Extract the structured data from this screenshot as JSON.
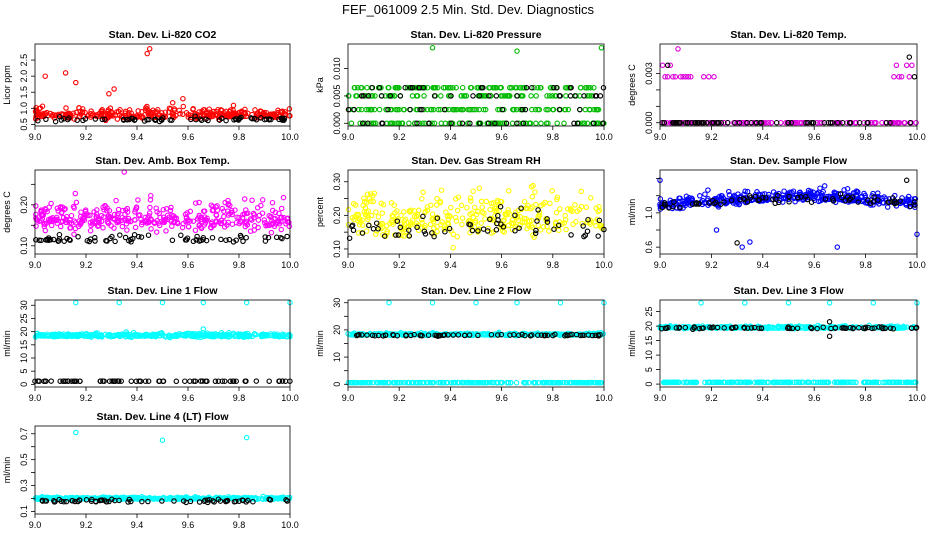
{
  "figure": {
    "title": "FEF_061009  2.5 Min. Std. Dev. Diagnostics"
  },
  "chart_data": [
    {
      "type": "scatter",
      "title": "Stan. Dev. Li-820 CO2",
      "ylabel": "Licor ppm",
      "xlim": [
        9.0,
        10.0
      ],
      "ylim": [
        0.45,
        3.0
      ],
      "xticks": [
        9.0,
        9.2,
        9.4,
        9.6,
        9.8,
        10.0
      ],
      "xtick_labels": [
        "9.0",
        "9.2",
        "9.4",
        "9.6",
        "9.8",
        "10.0"
      ],
      "yticks": [
        0.5,
        1.0,
        1.5,
        2.0,
        2.5
      ],
      "ytick_labels": [
        "0.5",
        "1.0",
        "1.5",
        "2.0",
        "2.5"
      ],
      "series": [
        {
          "color": "#ff0000",
          "base": 0.8,
          "spread": 0.25,
          "n": 320,
          "outliers": [
            [
              9.04,
              2.0
            ],
            [
              9.12,
              2.1
            ],
            [
              9.16,
              1.8
            ],
            [
              9.31,
              1.6
            ],
            [
              9.44,
              2.7
            ],
            [
              9.45,
              2.85
            ],
            [
              9.29,
              1.45
            ],
            [
              9.58,
              1.3
            ]
          ]
        },
        {
          "color": "#000000",
          "base": 0.65,
          "spread": 0.08,
          "n": 70,
          "outliers": []
        }
      ]
    },
    {
      "type": "scatter",
      "title": "Stan. Dev. Li-820 Pressure",
      "ylabel": "kPa",
      "xlim": [
        9.0,
        10.0
      ],
      "ylim": [
        -0.0005,
        0.0145
      ],
      "xticks": [
        9.0,
        9.2,
        9.4,
        9.6,
        9.8,
        10.0
      ],
      "xtick_labels": [
        "9.0",
        "9.2",
        "9.4",
        "9.6",
        "9.8",
        "10.0"
      ],
      "yticks": [
        0.0,
        0.005,
        0.01
      ],
      "ytick_labels": [
        "0.000",
        "0.005",
        "0.010"
      ],
      "series": [
        {
          "color": "#00bb00",
          "levels": [
            0.0,
            0.0025,
            0.005,
            0.0065
          ],
          "n": 340,
          "outliers": [
            [
              9.33,
              0.0138
            ],
            [
              9.66,
              0.0132
            ],
            [
              9.99,
              0.0138
            ]
          ]
        },
        {
          "color": "#000000",
          "levels": [
            0.0,
            0.0025,
            0.005,
            0.0065
          ],
          "n": 70,
          "outliers": []
        }
      ]
    },
    {
      "type": "scatter",
      "title": "Stan. Dev. Li-820 Temp.",
      "ylabel": "degrees C",
      "xlim": [
        9.0,
        10.0
      ],
      "ylim": [
        -0.0002,
        0.0048
      ],
      "xticks": [
        9.0,
        9.2,
        9.4,
        9.6,
        9.8,
        10.0
      ],
      "xtick_labels": [
        "9.0",
        "9.2",
        "9.4",
        "9.6",
        "9.8",
        "10.0"
      ],
      "yticks": [
        0.0,
        0.001,
        0.002,
        0.003
      ],
      "ytick_labels": [
        "0.000",
        "",
        "",
        "0.003"
      ],
      "series": [
        {
          "color": "#dd00dd",
          "x_range": [
            9.0,
            10.0
          ],
          "levels": [
            0.0
          ],
          "n": 110,
          "outliers": [
            [
              9.01,
              0.0035
            ],
            [
              9.02,
              0.0028
            ],
            [
              9.03,
              0.0028
            ],
            [
              9.04,
              0.0035
            ],
            [
              9.05,
              0.0028
            ],
            [
              9.06,
              0.0028
            ],
            [
              9.07,
              0.0045
            ],
            [
              9.08,
              0.0028
            ],
            [
              9.09,
              0.0028
            ],
            [
              9.1,
              0.0028
            ],
            [
              9.11,
              0.0028
            ],
            [
              9.12,
              0.0028
            ],
            [
              9.17,
              0.0028
            ],
            [
              9.19,
              0.0028
            ],
            [
              9.21,
              0.0028
            ],
            [
              9.91,
              0.0028
            ],
            [
              9.92,
              0.0035
            ],
            [
              9.93,
              0.0028
            ],
            [
              9.94,
              0.0028
            ],
            [
              9.96,
              0.0035
            ],
            [
              9.97,
              0.0028
            ],
            [
              9.98,
              0.0035
            ]
          ]
        },
        {
          "color": "#000000",
          "x_range": [
            9.0,
            10.0
          ],
          "levels": [
            0.0
          ],
          "n": 60,
          "outliers": [
            [
              9.03,
              0.0035
            ],
            [
              9.97,
              0.004
            ],
            [
              9.99,
              0.0028
            ]
          ]
        }
      ]
    },
    {
      "type": "scatter",
      "title": "Stan. Dev. Amb. Box Temp.",
      "ylabel": "degrees C",
      "xlim": [
        9.0,
        10.0
      ],
      "ylim": [
        0.08,
        0.285
      ],
      "xticks": [
        9.0,
        9.2,
        9.4,
        9.6,
        9.8,
        10.0
      ],
      "xtick_labels": [
        "9.0",
        "9.2",
        "9.4",
        "9.6",
        "9.8",
        "10.0"
      ],
      "yticks": [
        0.1,
        0.15,
        0.2,
        0.25
      ],
      "ytick_labels": [
        "0.10",
        "",
        "0.20",
        ""
      ],
      "series": [
        {
          "color": "#ff00ff",
          "base": 0.165,
          "spread": 0.045,
          "n": 380,
          "outliers": [
            [
              9.35,
              0.28
            ]
          ]
        },
        {
          "color": "#000000",
          "base": 0.115,
          "spread": 0.012,
          "n": 70,
          "outliers": []
        }
      ]
    },
    {
      "type": "scatter",
      "title": "Stan. Dev. Gas Stream RH",
      "ylabel": "percent",
      "xlim": [
        9.0,
        10.0
      ],
      "ylim": [
        0.085,
        0.335
      ],
      "xticks": [
        9.0,
        9.2,
        9.4,
        9.6,
        9.8,
        10.0
      ],
      "xtick_labels": [
        "9.0",
        "9.2",
        "9.4",
        "9.6",
        "9.8",
        "10.0"
      ],
      "yticks": [
        0.1,
        0.15,
        0.2,
        0.25,
        0.3
      ],
      "ytick_labels": [
        "0.10",
        "",
        "0.20",
        "",
        "0.30"
      ],
      "series": [
        {
          "color": "#ffff00",
          "base": 0.19,
          "spread": 0.09,
          "n": 330,
          "outliers": []
        },
        {
          "color": "#000000",
          "base": 0.16,
          "spread": 0.06,
          "n": 60,
          "outliers": []
        }
      ]
    },
    {
      "type": "scatter",
      "title": "Stan. Dev. Sample Flow",
      "ylabel": "ml/min",
      "xlim": [
        9.0,
        10.0
      ],
      "ylim": [
        0.52,
        1.5
      ],
      "xticks": [
        9.0,
        9.2,
        9.4,
        9.6,
        9.8,
        10.0
      ],
      "xtick_labels": [
        "9.0",
        "9.2",
        "9.4",
        "9.6",
        "9.8",
        "10.0"
      ],
      "yticks": [
        0.6,
        0.8,
        1.0,
        1.2,
        1.4
      ],
      "ytick_labels": [
        "0.6",
        "",
        "1.0",
        "",
        ""
      ],
      "series": [
        {
          "color": "#0000ff",
          "base": 1.08,
          "spread": 0.1,
          "trend": 0.1,
          "n": 380,
          "outliers": [
            [
              9.0,
              1.38
            ],
            [
              9.22,
              0.8
            ],
            [
              9.32,
              0.6
            ],
            [
              9.35,
              0.66
            ],
            [
              9.69,
              0.6
            ],
            [
              10.0,
              0.75
            ]
          ]
        },
        {
          "color": "#000000",
          "base": 1.08,
          "spread": 0.07,
          "trend": 0.08,
          "n": 70,
          "outliers": [
            [
              9.3,
              0.65
            ],
            [
              9.96,
              1.38
            ]
          ]
        }
      ]
    },
    {
      "type": "scatter",
      "title": "Stan. Dev. Line 1 Flow",
      "ylabel": "ml/min",
      "xlim": [
        9.0,
        10.0
      ],
      "ylim": [
        -1,
        32
      ],
      "xticks": [
        9.0,
        9.2,
        9.4,
        9.6,
        9.8,
        10.0
      ],
      "xtick_labels": [
        "9.0",
        "9.2",
        "9.4",
        "9.6",
        "9.8",
        "10.0"
      ],
      "yticks": [
        0,
        5,
        10,
        15,
        20,
        25,
        30
      ],
      "ytick_labels": [
        "0",
        "5",
        "10",
        "15",
        "20",
        "25",
        "30"
      ],
      "series": [
        {
          "color": "#00ffff",
          "base": 18.5,
          "spread": 0.9,
          "n": 380,
          "outliers": [
            [
              9.16,
              31
            ],
            [
              9.33,
              31
            ],
            [
              9.5,
              31
            ],
            [
              9.66,
              31
            ],
            [
              9.83,
              31
            ],
            [
              10.0,
              31
            ],
            [
              9.66,
              21
            ]
          ]
        },
        {
          "color": "#000000",
          "base": 1.2,
          "spread": 0.05,
          "n": 70,
          "outliers": []
        }
      ]
    },
    {
      "type": "scatter",
      "title": "Stan. Dev. Line 2 Flow",
      "ylabel": "ml/min",
      "xlim": [
        9.0,
        10.0
      ],
      "ylim": [
        -1,
        31
      ],
      "xticks": [
        9.0,
        9.2,
        9.4,
        9.6,
        9.8,
        10.0
      ],
      "xtick_labels": [
        "9.0",
        "9.2",
        "9.4",
        "9.6",
        "9.8",
        "10.0"
      ],
      "yticks": [
        0,
        5,
        10,
        15,
        20,
        25,
        30
      ],
      "ytick_labels": [
        "0",
        "",
        "10",
        "",
        "20",
        "",
        "30"
      ],
      "series": [
        {
          "color": "#00ffff",
          "base": 18.3,
          "spread": 0.6,
          "n": 340,
          "outliers": [
            [
              9.16,
              30
            ],
            [
              9.33,
              30
            ],
            [
              9.5,
              30
            ],
            [
              9.66,
              30
            ],
            [
              9.83,
              30
            ],
            [
              10.0,
              30
            ]
          ]
        },
        {
          "color": "#00ffff",
          "base": 0.6,
          "spread": 0.05,
          "n": 200,
          "outliers": []
        },
        {
          "color": "#000000",
          "base": 18.0,
          "spread": 0.4,
          "n": 70,
          "outliers": []
        }
      ]
    },
    {
      "type": "scatter",
      "title": "Stan. Dev. Line 3 Flow",
      "ylabel": "ml/min",
      "xlim": [
        9.0,
        10.0
      ],
      "ylim": [
        -1,
        29
      ],
      "xticks": [
        9.0,
        9.2,
        9.4,
        9.6,
        9.8,
        10.0
      ],
      "xtick_labels": [
        "9.0",
        "9.2",
        "9.4",
        "9.6",
        "9.8",
        "10.0"
      ],
      "yticks": [
        0,
        5,
        10,
        15,
        20,
        25
      ],
      "ytick_labels": [
        "0",
        "5",
        "10",
        "15",
        "20",
        "25"
      ],
      "series": [
        {
          "color": "#00ffff",
          "base": 19.5,
          "spread": 0.6,
          "n": 340,
          "outliers": [
            [
              9.16,
              28
            ],
            [
              9.33,
              28
            ],
            [
              9.5,
              28
            ],
            [
              9.66,
              28
            ],
            [
              9.83,
              28
            ],
            [
              10.0,
              28
            ]
          ]
        },
        {
          "color": "#00ffff",
          "base": 0.6,
          "spread": 0.05,
          "n": 200,
          "outliers": []
        },
        {
          "color": "#000000",
          "base": 19.3,
          "spread": 0.5,
          "n": 70,
          "outliers": [
            [
              9.66,
              21.5
            ],
            [
              9.66,
              16.5
            ]
          ]
        }
      ]
    },
    {
      "type": "scatter",
      "title": "Stan. Dev. Line 4 (LT) Flow",
      "ylabel": "ml/min",
      "xlim": [
        9.0,
        10.0
      ],
      "ylim": [
        0.08,
        0.76
      ],
      "xticks": [
        9.0,
        9.2,
        9.4,
        9.6,
        9.8,
        10.0
      ],
      "xtick_labels": [
        "9.0",
        "9.2",
        "9.4",
        "9.6",
        "9.8",
        "10.0"
      ],
      "yticks": [
        0.1,
        0.2,
        0.3,
        0.4,
        0.5,
        0.6,
        0.7
      ],
      "ytick_labels": [
        "0.1",
        "",
        "0.3",
        "",
        "0.5",
        "",
        "0.7"
      ],
      "series": [
        {
          "color": "#00ffff",
          "base": 0.2,
          "spread": 0.012,
          "n": 380,
          "outliers": [
            [
              9.16,
              0.71
            ],
            [
              9.5,
              0.65
            ],
            [
              9.83,
              0.67
            ]
          ]
        },
        {
          "color": "#000000",
          "base": 0.18,
          "spread": 0.015,
          "n": 70,
          "outliers": []
        }
      ]
    }
  ]
}
